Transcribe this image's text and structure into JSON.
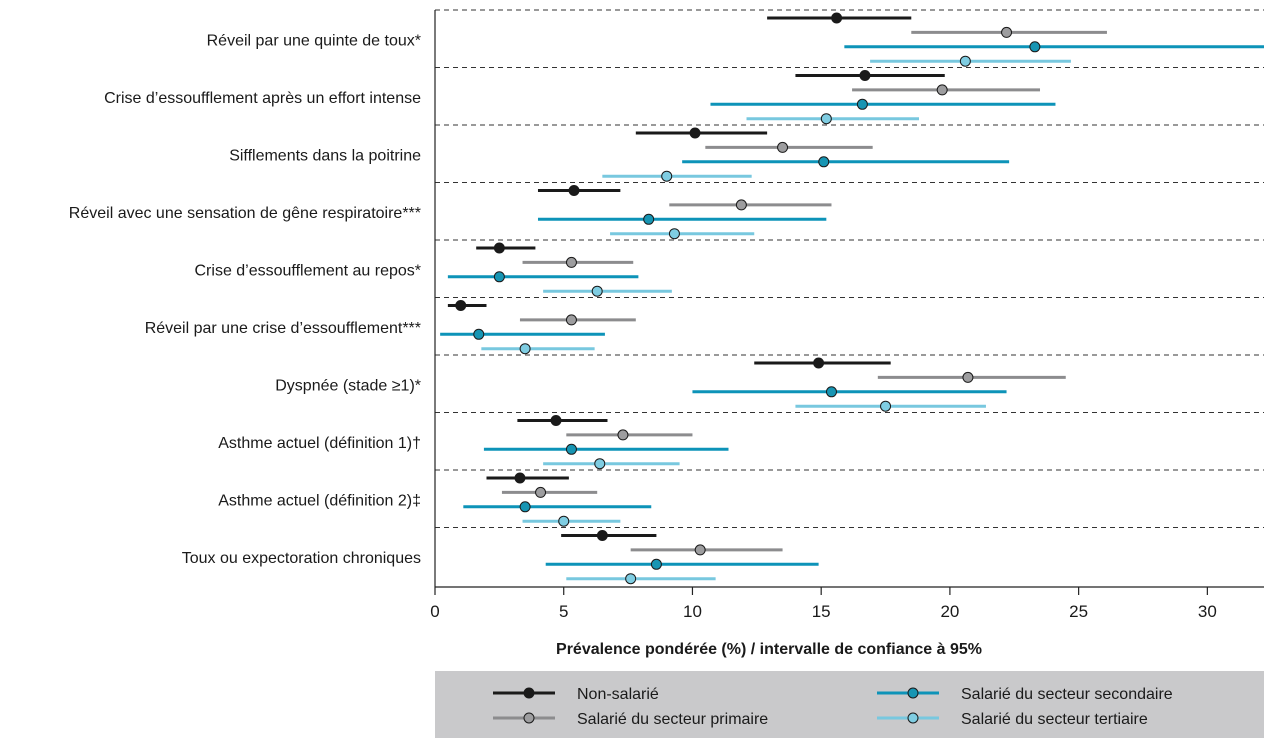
{
  "chart_data": {
    "type": "forest",
    "title": "",
    "xlabel": "Prévalence pondérée (%) / intervalle de confiance à 95%",
    "ylabel": "",
    "xlim": [
      0,
      32.2
    ],
    "x_ticks": [
      0,
      5,
      10,
      15,
      20,
      25,
      30
    ],
    "x_tick_labels": [
      "0",
      "5",
      "10",
      "15",
      "20",
      "25",
      "30"
    ],
    "grid": "dashed horizontal separators between categories",
    "legend_position": "bottom",
    "categories": [
      "Réveil par une quinte de toux*",
      "Crise d’essoufflement après un effort intense",
      "Sifflements dans la poitrine",
      "Réveil avec une sensation de gêne respiratoire***",
      "Crise d’essoufflement au repos*",
      "Réveil par une crise d’essoufflement***",
      "Dyspnée (stade ≥1)*",
      "Asthme actuel (définition 1)†",
      "Asthme actuel (définition 2)‡",
      "Toux ou expectoration chroniques"
    ],
    "series": [
      {
        "name": "Non-salarié",
        "color": "#1a1a1a",
        "marker_color": "#1a1a1a",
        "points": [
          {
            "value": 15.6,
            "low": 12.9,
            "high": 18.5
          },
          {
            "value": 16.7,
            "low": 14.0,
            "high": 19.8
          },
          {
            "value": 10.1,
            "low": 7.8,
            "high": 12.9
          },
          {
            "value": 5.4,
            "low": 4.0,
            "high": 7.2
          },
          {
            "value": 2.5,
            "low": 1.6,
            "high": 3.9
          },
          {
            "value": 1.0,
            "low": 0.5,
            "high": 2.0
          },
          {
            "value": 14.9,
            "low": 12.4,
            "high": 17.7
          },
          {
            "value": 4.7,
            "low": 3.2,
            "high": 6.7
          },
          {
            "value": 3.3,
            "low": 2.0,
            "high": 5.2
          },
          {
            "value": 6.5,
            "low": 4.9,
            "high": 8.6
          }
        ]
      },
      {
        "name": "Salarié du secteur primaire",
        "color": "#8c8c8e",
        "marker_color": "#9d9d9f",
        "points": [
          {
            "value": 22.2,
            "low": 18.5,
            "high": 26.1
          },
          {
            "value": 19.7,
            "low": 16.2,
            "high": 23.5
          },
          {
            "value": 13.5,
            "low": 10.5,
            "high": 17.0
          },
          {
            "value": 11.9,
            "low": 9.1,
            "high": 15.4
          },
          {
            "value": 5.3,
            "low": 3.4,
            "high": 7.7
          },
          {
            "value": 5.3,
            "low": 3.3,
            "high": 7.8
          },
          {
            "value": 20.7,
            "low": 17.2,
            "high": 24.5
          },
          {
            "value": 7.3,
            "low": 5.1,
            "high": 10.0
          },
          {
            "value": 4.1,
            "low": 2.6,
            "high": 6.3
          },
          {
            "value": 10.3,
            "low": 7.6,
            "high": 13.5
          }
        ]
      },
      {
        "name": "Salarié du secteur secondaire",
        "color": "#0d93b8",
        "marker_color": "#1795b3",
        "points": [
          {
            "value": 23.3,
            "low": 15.9,
            "high": 32.2
          },
          {
            "value": 16.6,
            "low": 10.7,
            "high": 24.1
          },
          {
            "value": 15.1,
            "low": 9.6,
            "high": 22.3
          },
          {
            "value": 8.3,
            "low": 4.0,
            "high": 15.2
          },
          {
            "value": 2.5,
            "low": 0.5,
            "high": 7.9
          },
          {
            "value": 1.7,
            "low": 0.2,
            "high": 6.6
          },
          {
            "value": 15.4,
            "low": 10.0,
            "high": 22.2
          },
          {
            "value": 5.3,
            "low": 1.9,
            "high": 11.4
          },
          {
            "value": 3.5,
            "low": 1.1,
            "high": 8.4
          },
          {
            "value": 8.6,
            "low": 4.3,
            "high": 14.9
          }
        ]
      },
      {
        "name": "Salarié du secteur tertiaire",
        "color": "#78c8df",
        "marker_color": "#7fcde2",
        "points": [
          {
            "value": 20.6,
            "low": 16.9,
            "high": 24.7
          },
          {
            "value": 15.2,
            "low": 12.1,
            "high": 18.8
          },
          {
            "value": 9.0,
            "low": 6.5,
            "high": 12.3
          },
          {
            "value": 9.3,
            "low": 6.8,
            "high": 12.4
          },
          {
            "value": 6.3,
            "low": 4.2,
            "high": 9.2
          },
          {
            "value": 3.5,
            "low": 1.8,
            "high": 6.2
          },
          {
            "value": 17.5,
            "low": 14.0,
            "high": 21.4
          },
          {
            "value": 6.4,
            "low": 4.2,
            "high": 9.5
          },
          {
            "value": 5.0,
            "low": 3.4,
            "high": 7.2
          },
          {
            "value": 7.6,
            "low": 5.1,
            "high": 10.9
          }
        ]
      }
    ]
  }
}
